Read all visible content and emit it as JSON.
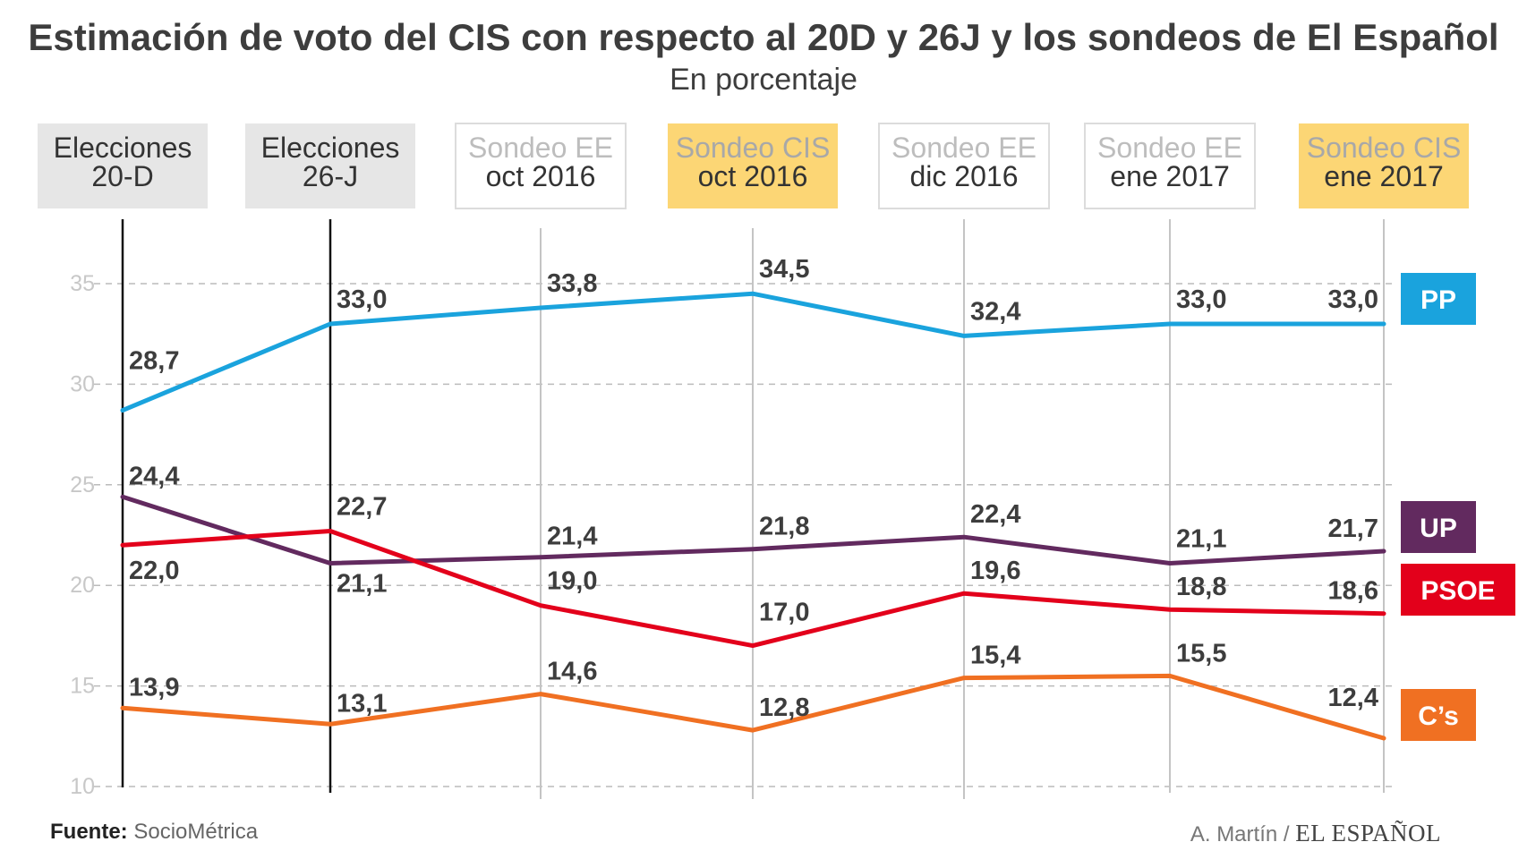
{
  "title": "Estimación de voto del CIS con respecto al 20D y 26J y los sondeos de El Español",
  "subtitle": "En porcentaje",
  "footer": {
    "source_label": "Fuente:",
    "source_value": "SocioMétrica",
    "author": "A. Martín /",
    "brand": "EL ESPAÑOL"
  },
  "colors": {
    "PP": "#1aa3dd",
    "UP": "#622a5f",
    "PSOE": "#e3001b",
    "Cs": "#f07022",
    "election_box": "#e6e6e6",
    "cis_box": "#fcd675",
    "grid": "#bbbbbb",
    "axis_text": "#c8c8c8",
    "value_text": "#3d3d3d"
  },
  "chart_data": {
    "type": "line",
    "ylim": [
      10,
      36
    ],
    "yticks": [
      10,
      15,
      20,
      25,
      30,
      35
    ],
    "grid": true,
    "legend_position": "right",
    "categories": [
      {
        "line1": "Elecciones",
        "line2": "20-D",
        "kind": "election"
      },
      {
        "line1": "Elecciones",
        "line2": "26-J",
        "kind": "election"
      },
      {
        "line1": "Sondeo EE",
        "line2": "oct 2016",
        "kind": "ee"
      },
      {
        "line1": "Sondeo CIS",
        "line2": "oct 2016",
        "kind": "cis"
      },
      {
        "line1": "Sondeo EE",
        "line2": "dic 2016",
        "kind": "ee"
      },
      {
        "line1": "Sondeo EE",
        "line2": "ene 2017",
        "kind": "ee"
      },
      {
        "line1": "Sondeo CIS",
        "line2": "ene 2017",
        "kind": "cis"
      }
    ],
    "series": [
      {
        "name": "PP",
        "color_key": "PP",
        "values": [
          28.7,
          33.0,
          33.8,
          34.5,
          32.4,
          33.0,
          33.0
        ],
        "labels": [
          "28,7",
          "33,0",
          "33,8",
          "34,5",
          "32,4",
          "33,0",
          "33,0"
        ]
      },
      {
        "name": "UP",
        "color_key": "UP",
        "values": [
          24.4,
          21.1,
          21.4,
          21.8,
          22.4,
          21.1,
          21.7
        ],
        "labels": [
          "24,4",
          "21,1",
          "21,4",
          "21,8",
          "22,4",
          "21,1",
          "21,7"
        ]
      },
      {
        "name": "PSOE",
        "color_key": "PSOE",
        "values": [
          22.0,
          22.7,
          19.0,
          17.0,
          19.6,
          18.8,
          18.6
        ],
        "labels": [
          "22,0",
          "22,7",
          "19,0",
          "17,0",
          "19,6",
          "18,8",
          "18,6"
        ]
      },
      {
        "name": "C’s",
        "color_key": "Cs",
        "values": [
          13.9,
          13.1,
          14.6,
          12.8,
          15.4,
          15.5,
          12.4
        ],
        "labels": [
          "13,9",
          "13,1",
          "14,6",
          "12,8",
          "15,4",
          "15,5",
          "12,4"
        ]
      }
    ]
  }
}
